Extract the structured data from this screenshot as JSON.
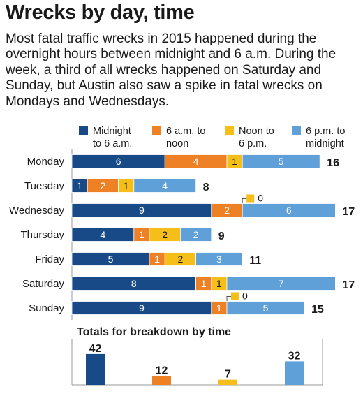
{
  "title": "Wrecks by day, time",
  "subtitle": "Most fatal traffic wrecks in 2015 happened during the overnight hours between midnight and 6 a.m. During the week, a third of all wrecks happened on Saturday and Sunday, but Austin also saw a spike in fatal wrecks on Mondays and Wednesdays.",
  "colors": {
    "midnight_6am": "#174a86",
    "6am_noon": "#ee8126",
    "noon_6pm": "#f6be19",
    "6pm_midnight": "#5fa0d8"
  },
  "legend": [
    {
      "line1": "Midnight",
      "line2": "to 6 a.m."
    },
    {
      "line1": "6 a.m. to",
      "line2": "noon"
    },
    {
      "line1": "Noon to",
      "line2": "6 p.m."
    },
    {
      "line1": "6 p.m. to",
      "line2": "midnight"
    }
  ],
  "breakdown_title": "Totals for breakdown by time",
  "chart_data": [
    {
      "type": "bar",
      "orientation": "horizontal",
      "stacked": true,
      "categories": [
        "Monday",
        "Tuesday",
        "Wednesday",
        "Thursday",
        "Friday",
        "Saturday",
        "Sunday"
      ],
      "series": [
        {
          "name": "Midnight to 6 a.m.",
          "values": [
            6,
            1,
            9,
            4,
            5,
            8,
            9
          ]
        },
        {
          "name": "6 a.m. to noon",
          "values": [
            4,
            2,
            2,
            1,
            1,
            1,
            1
          ]
        },
        {
          "name": "Noon to 6 p.m.",
          "values": [
            1,
            1,
            0,
            2,
            2,
            1,
            0
          ]
        },
        {
          "name": "6 p.m. to midnight",
          "values": [
            5,
            4,
            6,
            2,
            3,
            7,
            5
          ]
        }
      ],
      "totals": [
        16,
        8,
        17,
        9,
        11,
        17,
        15
      ],
      "legend_position": "top"
    },
    {
      "type": "bar",
      "title": "Totals for breakdown by time",
      "categories": [
        "Midnight to 6 a.m.",
        "6 a.m. to noon",
        "Noon to 6 p.m.",
        "6 p.m. to midnight"
      ],
      "values": [
        42,
        12,
        7,
        32
      ]
    }
  ]
}
